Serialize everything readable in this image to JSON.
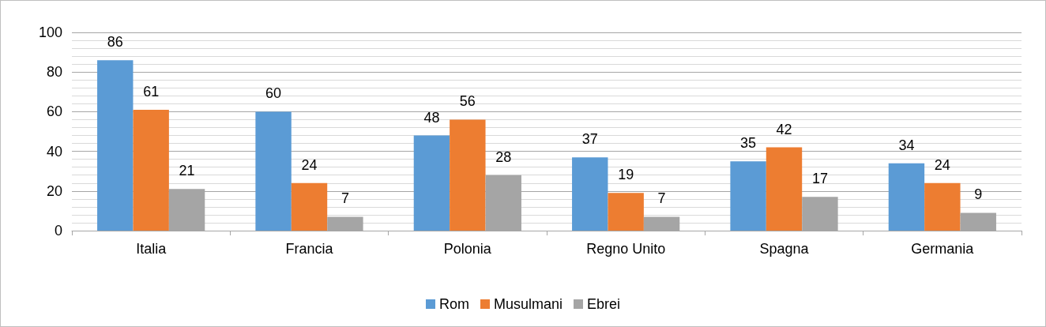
{
  "chart_data": {
    "type": "bar",
    "categories": [
      "Italia",
      "Francia",
      "Polonia",
      "Regno Unito",
      "Spagna",
      "Germania"
    ],
    "series": [
      {
        "name": "Rom",
        "color": "#5b9bd5",
        "values": [
          86,
          60,
          48,
          37,
          35,
          34
        ]
      },
      {
        "name": "Musulmani",
        "color": "#ed7d31",
        "values": [
          61,
          24,
          56,
          19,
          42,
          24
        ]
      },
      {
        "name": "Ebrei",
        "color": "#a5a5a5",
        "values": [
          21,
          7,
          28,
          7,
          17,
          9
        ]
      }
    ],
    "ylim": [
      0,
      100
    ],
    "yticks": [
      0,
      20,
      40,
      60,
      80,
      100
    ],
    "grid": "y",
    "legend": "bottom",
    "data_labels": true
  }
}
